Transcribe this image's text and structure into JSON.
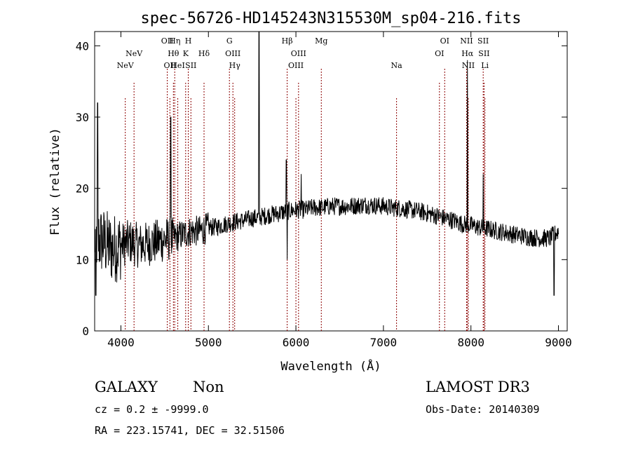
{
  "chart_data": {
    "type": "line",
    "title": "spec-56726-HD145243N315530M_sp04-216.fits",
    "xlabel": "Wavelength (Å)",
    "ylabel": "Flux (relative)",
    "xlim": [
      3700,
      9100
    ],
    "ylim": [
      0,
      42
    ],
    "xticks": [
      4000,
      5000,
      6000,
      7000,
      8000,
      9000
    ],
    "yticks": [
      0,
      10,
      20,
      30,
      40
    ],
    "grid": false,
    "line_color": "#000000",
    "marker_color": "#8b0000",
    "spectral_lines": [
      {
        "label": "NeV",
        "wavelength": 4050,
        "row": 3
      },
      {
        "label": "NeV",
        "wavelength": 4150,
        "row": 2
      },
      {
        "label": "OII",
        "wavelength": 4530,
        "row": 1
      },
      {
        "label": "OII",
        "wavelength": 4560,
        "row": 3
      },
      {
        "label": "Hη",
        "wavelength": 4615,
        "row": 1
      },
      {
        "label": "Hθ",
        "wavelength": 4600,
        "row": 2
      },
      {
        "label": "HeI",
        "wavelength": 4650,
        "row": 3
      },
      {
        "label": "H",
        "wavelength": 4770,
        "row": 1
      },
      {
        "label": "K",
        "wavelength": 4740,
        "row": 2
      },
      {
        "label": "SII",
        "wavelength": 4800,
        "row": 3
      },
      {
        "label": "Hδ",
        "wavelength": 4950,
        "row": 2
      },
      {
        "label": "G",
        "wavelength": 5240,
        "row": 1
      },
      {
        "label": "OIII",
        "wavelength": 5280,
        "row": 2
      },
      {
        "label": "Hγ",
        "wavelength": 5300,
        "row": 3
      },
      {
        "label": "Hβ",
        "wavelength": 5900,
        "row": 1
      },
      {
        "label": "OIII",
        "wavelength": 6030,
        "row": 2
      },
      {
        "label": "OIII",
        "wavelength": 6000,
        "row": 3
      },
      {
        "label": "Mg",
        "wavelength": 6290,
        "row": 1
      },
      {
        "label": "Na",
        "wavelength": 7150,
        "row": 3
      },
      {
        "label": "OI",
        "wavelength": 7700,
        "row": 1
      },
      {
        "label": "OI",
        "wavelength": 7640,
        "row": 2
      },
      {
        "label": "NII",
        "wavelength": 7950,
        "row": 1
      },
      {
        "label": "Hα",
        "wavelength": 7960,
        "row": 2
      },
      {
        "label": "NII",
        "wavelength": 7970,
        "row": 3
      },
      {
        "label": "SII",
        "wavelength": 8140,
        "row": 1
      },
      {
        "label": "SII",
        "wavelength": 8150,
        "row": 2
      },
      {
        "label": "Li",
        "wavelength": 8160,
        "row": 3
      }
    ],
    "spectrum_anchors": {
      "x": [
        3700,
        3800,
        3900,
        4000,
        4100,
        4200,
        4300,
        4400,
        4500,
        4600,
        4700,
        4800,
        4900,
        5000,
        5100,
        5200,
        5300,
        5400,
        5500,
        5600,
        5700,
        5800,
        5900,
        6000,
        6100,
        6200,
        6300,
        6400,
        6500,
        6600,
        6700,
        6800,
        6900,
        7000,
        7100,
        7200,
        7300,
        7400,
        7500,
        7600,
        7700,
        7800,
        7900,
        8000,
        8100,
        8200,
        8300,
        8400,
        8500,
        8600,
        8700,
        8800,
        8900,
        9000
      ],
      "y": [
        13,
        12.5,
        11.5,
        12,
        12.5,
        12,
        12.2,
        12.5,
        12.8,
        13,
        13.5,
        14,
        14,
        14.5,
        14.6,
        15,
        15.3,
        15.5,
        15.8,
        16,
        16.3,
        16.5,
        16.8,
        17,
        17,
        17.3,
        17.3,
        17.5,
        17.5,
        17.5,
        17.6,
        17.7,
        17.6,
        17.5,
        17.3,
        17.2,
        17,
        16.8,
        16.5,
        16.2,
        15.8,
        15.5,
        15,
        14.8,
        14.5,
        14.3,
        14,
        13.8,
        13.5,
        13.3,
        13.1,
        13,
        13,
        14
      ]
    },
    "spectrum_peaks": [
      {
        "x": 3735,
        "y": 32
      },
      {
        "x": 3715,
        "y": 5
      },
      {
        "x": 4570,
        "y": 30
      },
      {
        "x": 5577,
        "y": 42
      },
      {
        "x": 5890,
        "y": 24
      },
      {
        "x": 5900,
        "y": 10
      },
      {
        "x": 6060,
        "y": 22
      },
      {
        "x": 7960,
        "y": 38
      },
      {
        "x": 8140,
        "y": 22
      },
      {
        "x": 8950,
        "y": 5
      }
    ]
  },
  "info": {
    "object_class": "GALAXY",
    "subclass": "Non",
    "survey": "LAMOST DR3",
    "cz_text": "cz = 0.2 ± -9999.0",
    "obs_date": "Obs-Date: 20140309",
    "radec_text": "RA = 223.15741, DEC =  32.51506"
  }
}
